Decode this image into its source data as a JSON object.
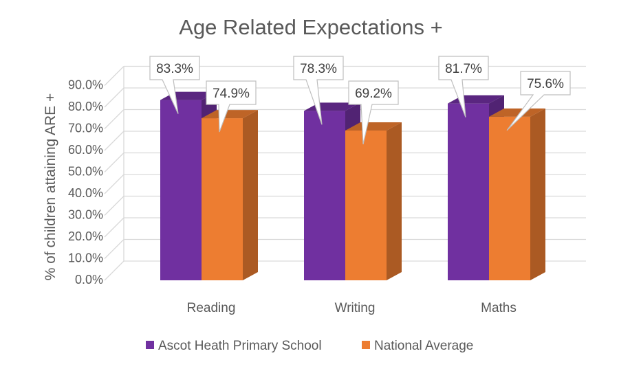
{
  "chart_data": {
    "type": "bar",
    "title": "Age Related Expectations +",
    "xlabel": "",
    "ylabel": "% of children attaining ARE +",
    "categories": [
      "Reading",
      "Writing",
      "Maths"
    ],
    "series": [
      {
        "name": "Ascot Heath Primary School",
        "values": [
          83.3,
          78.3,
          81.7
        ],
        "labels": [
          "83.3%",
          "78.3%",
          "81.7%"
        ],
        "color": "#7030A0"
      },
      {
        "name": "National Average",
        "values": [
          74.9,
          69.2,
          75.6
        ],
        "labels": [
          "74.9%",
          "69.2%",
          "75.6%"
        ],
        "color": "#ED7D31"
      }
    ],
    "ylim": [
      0,
      90
    ],
    "yticks": [
      "0.0%",
      "10.0%",
      "20.0%",
      "30.0%",
      "40.0%",
      "50.0%",
      "60.0%",
      "70.0%",
      "80.0%",
      "90.0%"
    ],
    "grid": true,
    "legend": "bottom",
    "style": "3d-column with callout data labels"
  }
}
